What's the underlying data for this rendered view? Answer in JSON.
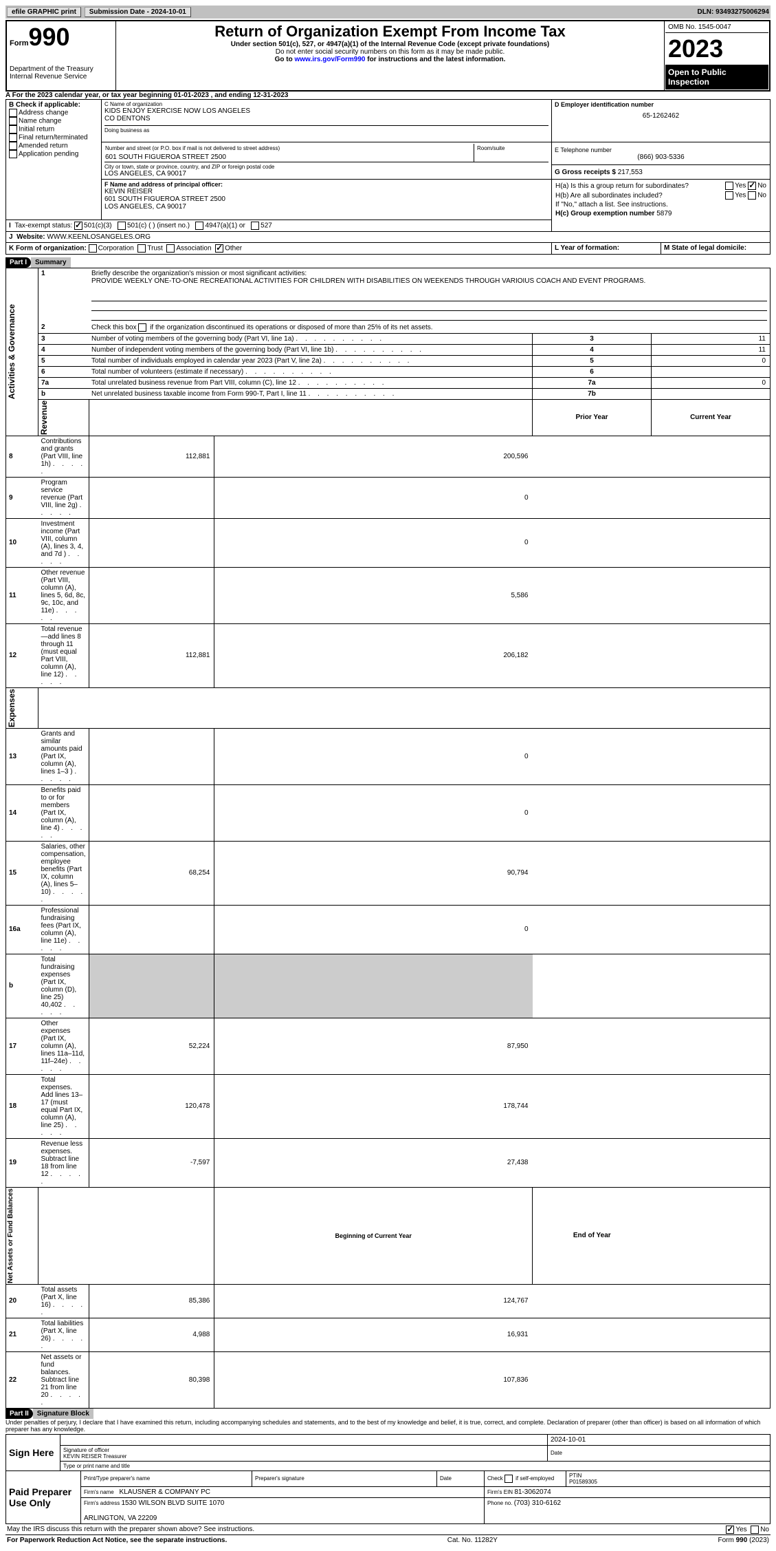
{
  "header": {
    "efile": "efile GRAPHIC print",
    "submission": "Submission Date - 2024-10-01",
    "dln": "DLN: 93493275006294"
  },
  "top": {
    "form_label": "Form",
    "form_num": "990",
    "dept": "Department of the Treasury\nInternal Revenue Service",
    "title": "Return of Organization Exempt From Income Tax",
    "sub1": "Under section 501(c), 527, or 4947(a)(1) of the Internal Revenue Code (except private foundations)",
    "sub2": "Do not enter social security numbers on this form as it may be made public.",
    "sub3_pre": "Go to ",
    "sub3_link": "www.irs.gov/Form990",
    "sub3_post": " for instructions and the latest information.",
    "omb": "OMB No. 1545-0047",
    "year": "2023",
    "inspection": "Open to Public Inspection"
  },
  "A": {
    "label": "A For the 2023 calendar year, or tax year beginning ",
    "begin": "01-01-2023",
    "mid": " , and ending ",
    "end": "12-31-2023"
  },
  "B": {
    "label": "B Check if applicable:",
    "items": [
      "Address change",
      "Name change",
      "Initial return",
      "Final return/terminated",
      "Amended return",
      "Application pending"
    ]
  },
  "C": {
    "name_label": "C Name of organization",
    "name": "KIDS ENJOY EXERCISE NOW LOS ANGELES\nCO DENTONS",
    "dba_label": "Doing business as",
    "addr_label": "Number and street (or P.O. box if mail is not delivered to street address)",
    "room_label": "Room/suite",
    "addr": "601 SOUTH FIGUEROA STREET 2500",
    "city_label": "City or town, state or province, country, and ZIP or foreign postal code",
    "city": "LOS ANGELES, CA  90017"
  },
  "D": {
    "label": "D Employer identification number",
    "value": "65-1262462"
  },
  "E": {
    "label": "E Telephone number",
    "value": "(866) 903-5336"
  },
  "G": {
    "label": "G Gross receipts $",
    "value": "217,553"
  },
  "F": {
    "label": "F Name and address of principal officer:",
    "name": "KEVIN REISER",
    "addr": "601 SOUTH FIGUEROA STREET 2500\nLOS ANGELES, CA  90017"
  },
  "H": {
    "a": "H(a)  Is this a group return for subordinates?",
    "b": "H(b)  Are all subordinates included?",
    "note": "If \"No,\" attach a list. See instructions.",
    "c": "H(c)  Group exemption number  ",
    "c_val": "5879",
    "yes": "Yes",
    "no": "No"
  },
  "I": {
    "label": "Tax-exempt status:",
    "opts": [
      "501(c)(3)",
      "501(c) (  ) (insert no.)",
      "4947(a)(1) or",
      "527"
    ]
  },
  "J": {
    "label": "Website: ",
    "value": "WWW.KEENLOSANGELES.ORG"
  },
  "K": {
    "label": "K Form of organization:",
    "opts": [
      "Corporation",
      "Trust",
      "Association",
      "Other"
    ]
  },
  "L": {
    "label": "L Year of formation:"
  },
  "M": {
    "label": "M State of legal domicile:"
  },
  "part1": {
    "header": "Part I",
    "title": "Summary",
    "q1a": "Briefly describe the organization's mission or most significant activities:",
    "q1b": "PROVIDE WEEKLY ONE-TO-ONE RECREATIONAL ACTIVITIES FOR CHILDREN WITH DISABILITIES ON WEEKENDS THROUGH VARIOIUS COACH AND EVENT PROGRAMS.",
    "q2": "Check this box ",
    "q2b": " if the organization discontinued its operations or disposed of more than 25% of its net assets.",
    "rows_gov": [
      {
        "n": "3",
        "t": "Number of voting members of the governing body (Part VI, line 1a)",
        "box": "3",
        "v": "11"
      },
      {
        "n": "4",
        "t": "Number of independent voting members of the governing body (Part VI, line 1b)",
        "box": "4",
        "v": "11"
      },
      {
        "n": "5",
        "t": "Total number of individuals employed in calendar year 2023 (Part V, line 2a)",
        "box": "5",
        "v": "0"
      },
      {
        "n": "6",
        "t": "Total number of volunteers (estimate if necessary)",
        "box": "6",
        "v": ""
      },
      {
        "n": "7a",
        "t": "Total unrelated business revenue from Part VIII, column (C), line 12",
        "box": "7a",
        "v": "0"
      },
      {
        "n": "b",
        "t": "Net unrelated business taxable income from Form 990-T, Part I, line 11",
        "box": "7b",
        "v": ""
      }
    ],
    "col_head": {
      "prior": "Prior Year",
      "current": "Current Year"
    },
    "rows_rev": [
      {
        "n": "8",
        "t": "Contributions and grants (Part VIII, line 1h)",
        "p": "112,881",
        "c": "200,596"
      },
      {
        "n": "9",
        "t": "Program service revenue (Part VIII, line 2g)",
        "p": "",
        "c": "0"
      },
      {
        "n": "10",
        "t": "Investment income (Part VIII, column (A), lines 3, 4, and 7d )",
        "p": "",
        "c": "0"
      },
      {
        "n": "11",
        "t": "Other revenue (Part VIII, column (A), lines 5, 6d, 8c, 9c, 10c, and 11e)",
        "p": "",
        "c": "5,586"
      },
      {
        "n": "12",
        "t": "Total revenue—add lines 8 through 11 (must equal Part VIII, column (A), line 12)",
        "p": "112,881",
        "c": "206,182"
      }
    ],
    "rows_exp": [
      {
        "n": "13",
        "t": "Grants and similar amounts paid (Part IX, column (A), lines 1–3 )",
        "p": "",
        "c": "0"
      },
      {
        "n": "14",
        "t": "Benefits paid to or for members (Part IX, column (A), line 4)",
        "p": "",
        "c": "0"
      },
      {
        "n": "15",
        "t": "Salaries, other compensation, employee benefits (Part IX, column (A), lines 5–10)",
        "p": "68,254",
        "c": "90,794"
      },
      {
        "n": "16a",
        "t": "Professional fundraising fees (Part IX, column (A), line 11e)",
        "p": "",
        "c": "0"
      },
      {
        "n": "b",
        "t": "Total fundraising expenses (Part IX, column (D), line 25) 40,402",
        "p": "shade",
        "c": "shade"
      },
      {
        "n": "17",
        "t": "Other expenses (Part IX, column (A), lines 11a–11d, 11f–24e)",
        "p": "52,224",
        "c": "87,950"
      },
      {
        "n": "18",
        "t": "Total expenses. Add lines 13–17 (must equal Part IX, column (A), line 25)",
        "p": "120,478",
        "c": "178,744"
      },
      {
        "n": "19",
        "t": "Revenue less expenses. Subtract line 18 from line 12",
        "p": "-7,597",
        "c": "27,438"
      }
    ],
    "col_head2": {
      "prior": "Beginning of Current Year",
      "current": "End of Year"
    },
    "rows_net": [
      {
        "n": "20",
        "t": "Total assets (Part X, line 16)",
        "p": "85,386",
        "c": "124,767"
      },
      {
        "n": "21",
        "t": "Total liabilities (Part X, line 26)",
        "p": "4,988",
        "c": "16,931"
      },
      {
        "n": "22",
        "t": "Net assets or fund balances. Subtract line 21 from line 20",
        "p": "80,398",
        "c": "107,836"
      }
    ],
    "sections": {
      "gov": "Activities & Governance",
      "rev": "Revenue",
      "exp": "Expenses",
      "net": "Net Assets or Fund Balances"
    }
  },
  "part2": {
    "header": "Part II",
    "title": "Signature Block",
    "decl": "Under penalties of perjury, I declare that I have examined this return, including accompanying schedules and statements, and to the best of my knowledge and belief, it is true, correct, and complete. Declaration of preparer (other than officer) is based on all information of which preparer has any knowledge.",
    "sign_here": "Sign Here",
    "sig_officer": "Signature of officer",
    "date_label": "Date",
    "date": "2024-10-01",
    "officer": "KEVIN REISER  Treasurer",
    "type_name": "Type or print name and title",
    "paid": "Paid Preparer Use Only",
    "pt_name_label": "Print/Type preparer's name",
    "pt_sig_label": "Preparer's signature",
    "check_self": "Check ",
    "check_self2": " if self-employed",
    "ptin_label": "PTIN",
    "ptin": "P01589305",
    "firm_name_label": "Firm's name  ",
    "firm_name": "KLAUSNER & COMPANY PC",
    "firm_ein_label": "Firm's EIN  ",
    "firm_ein": "81-3062074",
    "firm_addr_label": "Firm's address ",
    "firm_addr": "1530 WILSON BLVD SUITE 1070\n\nARLINGTON, VA  22209",
    "phone_label": "Phone no. ",
    "phone": "(703) 310-6162",
    "discuss": "May the IRS discuss this return with the preparer shown above? See instructions.",
    "yes": "Yes",
    "no": "No"
  },
  "footer": {
    "left": "For Paperwork Reduction Act Notice, see the separate instructions.",
    "mid": "Cat. No. 11282Y",
    "right": "Form 990 (2023)"
  }
}
